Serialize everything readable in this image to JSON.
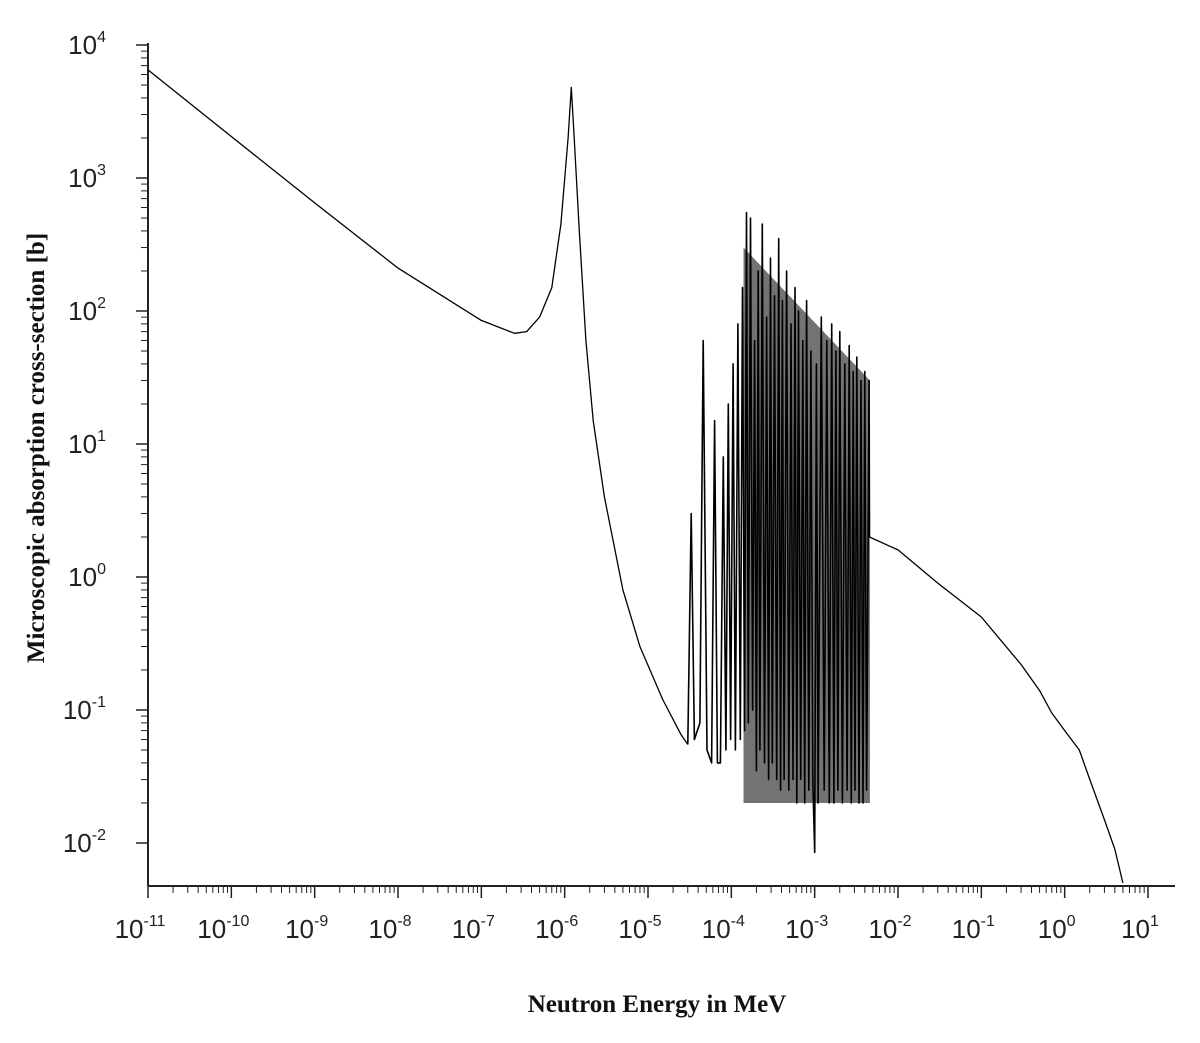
{
  "chart_data": {
    "type": "line",
    "xlabel": "Neutron Energy in MeV",
    "ylabel": "Microscopic absorption cross-section [b]",
    "x_scale": "log",
    "y_scale": "log",
    "xlim": [
      1e-11,
      15
    ],
    "ylim": [
      0.005,
      10000
    ],
    "x_ticks": [
      {
        "base": "10",
        "exp": "-11",
        "value": 1e-11
      },
      {
        "base": "10",
        "exp": "-10",
        "value": 1e-10
      },
      {
        "base": "10",
        "exp": "-9",
        "value": 1e-09
      },
      {
        "base": "10",
        "exp": "-8",
        "value": 1e-08
      },
      {
        "base": "10",
        "exp": "-7",
        "value": 1e-07
      },
      {
        "base": "10",
        "exp": "-6",
        "value": 1e-06
      },
      {
        "base": "10",
        "exp": "-5",
        "value": 1e-05
      },
      {
        "base": "10",
        "exp": "-4",
        "value": 0.0001
      },
      {
        "base": "10",
        "exp": "-3",
        "value": 0.001
      },
      {
        "base": "10",
        "exp": "-2",
        "value": 0.01
      },
      {
        "base": "10",
        "exp": "-1",
        "value": 0.1
      },
      {
        "base": "10",
        "exp": "0",
        "value": 1
      },
      {
        "base": "10",
        "exp": "1",
        "value": 10
      }
    ],
    "y_ticks": [
      {
        "base": "10",
        "exp": "-2",
        "value": 0.01
      },
      {
        "base": "10",
        "exp": "-1",
        "value": 0.1
      },
      {
        "base": "10",
        "exp": "0",
        "value": 1
      },
      {
        "base": "10",
        "exp": "1",
        "value": 10
      },
      {
        "base": "10",
        "exp": "2",
        "value": 100
      },
      {
        "base": "10",
        "exp": "3",
        "value": 1000
      },
      {
        "base": "10",
        "exp": "4",
        "value": 10000
      }
    ],
    "grid": false,
    "line_color": "#000000",
    "series": [
      {
        "points": [
          [
            1e-11,
            6500
          ],
          [
            1e-10,
            2050
          ],
          [
            1e-09,
            650
          ],
          [
            1e-08,
            210
          ],
          [
            1e-07,
            85
          ],
          [
            2.5e-07,
            68
          ],
          [
            3.5e-07,
            70
          ],
          [
            5e-07,
            90
          ],
          [
            7e-07,
            150
          ],
          [
            9e-07,
            450
          ],
          [
            1.1e-06,
            2000
          ],
          [
            1.2e-06,
            4800
          ],
          [
            1.3e-06,
            2000
          ],
          [
            1.5e-06,
            400
          ],
          [
            1.8e-06,
            60
          ],
          [
            2.2e-06,
            15
          ],
          [
            3e-06,
            4
          ],
          [
            5e-06,
            0.8
          ],
          [
            8e-06,
            0.3
          ],
          [
            1.5e-05,
            0.12
          ],
          [
            2.5e-05,
            0.065
          ],
          [
            3e-05,
            0.055
          ]
        ]
      },
      {
        "points": [
          [
            3e-05,
            0.055
          ],
          [
            3.3e-05,
            3
          ],
          [
            3.6e-05,
            0.06
          ],
          [
            4.2e-05,
            0.08
          ],
          [
            4.6e-05,
            60
          ],
          [
            5.1e-05,
            0.05
          ],
          [
            5.8e-05,
            0.04
          ],
          [
            6.3e-05,
            15
          ],
          [
            6.8e-05,
            0.04
          ],
          [
            7.4e-05,
            0.04
          ],
          [
            8e-05,
            8
          ],
          [
            8.6e-05,
            0.05
          ],
          [
            9.2e-05,
            20
          ],
          [
            9.8e-05,
            0.06
          ],
          [
            0.000105,
            40
          ],
          [
            0.000112,
            0.05
          ],
          [
            0.00012,
            80
          ],
          [
            0.000128,
            0.06
          ],
          [
            0.000136,
            150
          ],
          [
            0.000144,
            0.07
          ],
          [
            0.000152,
            550
          ],
          [
            0.00016,
            0.08
          ],
          [
            0.00017,
            500
          ],
          [
            0.00018,
            0.1
          ],
          [
            0.00019,
            60
          ],
          [
            0.0002,
            0.035
          ],
          [
            0.00021,
            200
          ],
          [
            0.00022,
            0.05
          ],
          [
            0.000235,
            450
          ],
          [
            0.00025,
            0.04
          ],
          [
            0.000265,
            90
          ],
          [
            0.00028,
            0.03
          ],
          [
            0.000295,
            250
          ],
          [
            0.00031,
            0.04
          ],
          [
            0.00033,
            130
          ],
          [
            0.00035,
            0.03
          ],
          [
            0.00037,
            350
          ],
          [
            0.00039,
            0.025
          ],
          [
            0.00041,
            120
          ],
          [
            0.00043,
            0.03
          ],
          [
            0.00046,
            200
          ],
          [
            0.00049,
            0.025
          ],
          [
            0.00052,
            80
          ],
          [
            0.00055,
            0.03
          ],
          [
            0.00058,
            150
          ],
          [
            0.00061,
            0.02
          ],
          [
            0.00064,
            100
          ],
          [
            0.00068,
            0.03
          ],
          [
            0.00072,
            60
          ],
          [
            0.00076,
            0.02
          ],
          [
            0.0008,
            120
          ],
          [
            0.00085,
            0.025
          ],
          [
            0.0009,
            50
          ],
          [
            0.00095,
            0.03
          ],
          [
            0.001,
            0.0085
          ],
          [
            0.00105,
            40
          ],
          [
            0.0011,
            0.02
          ],
          [
            0.0012,
            90
          ],
          [
            0.0013,
            0.025
          ],
          [
            0.0014,
            60
          ],
          [
            0.0015,
            0.02
          ],
          [
            0.0016,
            80
          ],
          [
            0.0017,
            0.02
          ],
          [
            0.0018,
            50
          ],
          [
            0.0019,
            0.025
          ],
          [
            0.002,
            70
          ],
          [
            0.00215,
            0.02
          ],
          [
            0.0023,
            40
          ],
          [
            0.00245,
            0.025
          ],
          [
            0.0026,
            55
          ],
          [
            0.00275,
            0.02
          ],
          [
            0.0029,
            35
          ],
          [
            0.00305,
            0.025
          ],
          [
            0.0032,
            45
          ],
          [
            0.0034,
            0.02
          ],
          [
            0.0036,
            30
          ],
          [
            0.0038,
            0.02
          ],
          [
            0.004,
            35
          ],
          [
            0.0042,
            0.025
          ],
          [
            0.0045,
            30
          ],
          [
            0.00455,
            2
          ]
        ]
      },
      {
        "points": [
          [
            0.00455,
            2
          ],
          [
            0.01,
            1.6
          ],
          [
            0.03,
            0.9
          ],
          [
            0.1,
            0.5
          ],
          [
            0.3,
            0.22
          ],
          [
            0.5,
            0.14
          ],
          [
            0.7,
            0.095
          ],
          [
            1,
            0.07
          ],
          [
            1.5,
            0.05
          ],
          [
            2,
            0.03
          ],
          [
            3,
            0.015
          ],
          [
            4,
            0.009
          ],
          [
            5,
            0.005
          ]
        ]
      }
    ],
    "dense_band": {
      "x_range": [
        0.00014,
        0.0046
      ],
      "y_low": [
        0.02,
        0.02
      ],
      "y_high": [
        300,
        30
      ],
      "fill_color": "#000000"
    }
  }
}
